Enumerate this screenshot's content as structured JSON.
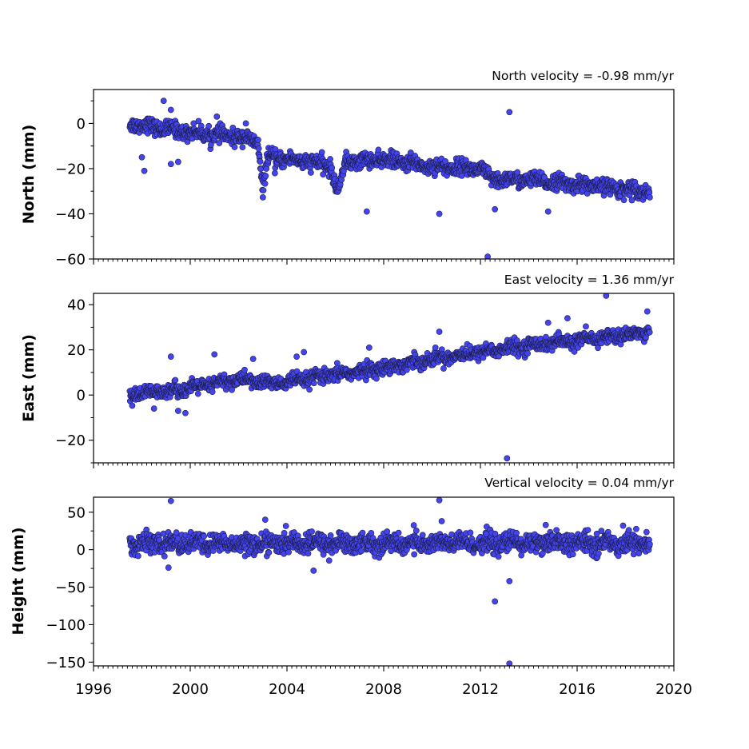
{
  "chart_data": [
    {
      "type": "scatter",
      "title": "North velocity = -0.98 mm/yr",
      "xlabel": "",
      "ylabel": "North (mm)",
      "xlim": [
        1996,
        2020
      ],
      "ylim": [
        -60,
        15
      ],
      "yticks": [
        {
          "value": 0,
          "label": "0"
        },
        {
          "value": -20,
          "label": "−20"
        },
        {
          "value": -40,
          "label": "−40"
        },
        {
          "value": -60,
          "label": "−60"
        }
      ],
      "trend": [
        {
          "x": 1997.5,
          "y": 0
        },
        {
          "x": 2000.0,
          "y": -4
        },
        {
          "x": 2002.0,
          "y": -6
        },
        {
          "x": 2002.8,
          "y": -8
        },
        {
          "x": 2003.0,
          "y": -30
        },
        {
          "x": 2003.2,
          "y": -15
        },
        {
          "x": 2005.0,
          "y": -17
        },
        {
          "x": 2005.8,
          "y": -19
        },
        {
          "x": 2006.1,
          "y": -31
        },
        {
          "x": 2006.4,
          "y": -17
        },
        {
          "x": 2008.0,
          "y": -16
        },
        {
          "x": 2010.0,
          "y": -19
        },
        {
          "x": 2012.0,
          "y": -20
        },
        {
          "x": 2012.5,
          "y": -25
        },
        {
          "x": 2014.0,
          "y": -25
        },
        {
          "x": 2016.0,
          "y": -27
        },
        {
          "x": 2019.0,
          "y": -30
        }
      ],
      "noise": 2.2,
      "outliers": [
        {
          "x": 1998.9,
          "y": 10
        },
        {
          "x": 1999.2,
          "y": 6
        },
        {
          "x": 1999.2,
          "y": -18
        },
        {
          "x": 1999.5,
          "y": -17
        },
        {
          "x": 1998.0,
          "y": -15
        },
        {
          "x": 1998.1,
          "y": -21
        },
        {
          "x": 2001.1,
          "y": 3
        },
        {
          "x": 2002.3,
          "y": 0
        },
        {
          "x": 2007.3,
          "y": -39
        },
        {
          "x": 2010.3,
          "y": -40
        },
        {
          "x": 2012.3,
          "y": -59
        },
        {
          "x": 2012.6,
          "y": -38
        },
        {
          "x": 2013.2,
          "y": 5
        },
        {
          "x": 2014.8,
          "y": -39
        },
        {
          "x": 2003.5,
          "y": -22
        }
      ]
    },
    {
      "type": "scatter",
      "title": "East velocity = 1.36 mm/yr",
      "xlabel": "",
      "ylabel": "East (mm)",
      "xlim": [
        1996,
        2020
      ],
      "ylim": [
        -30,
        45
      ],
      "yticks": [
        {
          "value": 40,
          "label": "40"
        },
        {
          "value": 20,
          "label": "20"
        },
        {
          "value": 0,
          "label": "0"
        },
        {
          "value": -20,
          "label": "−20"
        }
      ],
      "trend": [
        {
          "x": 1997.5,
          "y": 0
        },
        {
          "x": 2000.0,
          "y": 3
        },
        {
          "x": 2002.0,
          "y": 7
        },
        {
          "x": 2003.5,
          "y": 5
        },
        {
          "x": 2006.0,
          "y": 9
        },
        {
          "x": 2008.0,
          "y": 12
        },
        {
          "x": 2010.0,
          "y": 16
        },
        {
          "x": 2012.0,
          "y": 19
        },
        {
          "x": 2014.0,
          "y": 22
        },
        {
          "x": 2016.0,
          "y": 24
        },
        {
          "x": 2019.0,
          "y": 28
        }
      ],
      "noise": 2.0,
      "outliers": [
        {
          "x": 1999.2,
          "y": 17
        },
        {
          "x": 1999.5,
          "y": -7
        },
        {
          "x": 1999.8,
          "y": -8
        },
        {
          "x": 2001.0,
          "y": 18
        },
        {
          "x": 2002.6,
          "y": 16
        },
        {
          "x": 2004.4,
          "y": 17
        },
        {
          "x": 2004.7,
          "y": 19
        },
        {
          "x": 2007.4,
          "y": 21
        },
        {
          "x": 2010.3,
          "y": 28
        },
        {
          "x": 2013.1,
          "y": -28
        },
        {
          "x": 2015.6,
          "y": 34
        },
        {
          "x": 2017.2,
          "y": 44
        },
        {
          "x": 2018.9,
          "y": 37
        },
        {
          "x": 1998.5,
          "y": -6
        },
        {
          "x": 2014.8,
          "y": 32
        }
      ]
    },
    {
      "type": "scatter",
      "title": "Vertical velocity = 0.04 mm/yr",
      "xlabel": "",
      "ylabel": "Height (mm)",
      "xlim": [
        1996,
        2020
      ],
      "ylim": [
        -155,
        70
      ],
      "yticks": [
        {
          "value": 50,
          "label": "50"
        },
        {
          "value": 0,
          "label": "0"
        },
        {
          "value": -50,
          "label": "−50"
        },
        {
          "value": -100,
          "label": "−100"
        },
        {
          "value": -150,
          "label": "−150"
        }
      ],
      "trend": [
        {
          "x": 1997.5,
          "y": 8
        },
        {
          "x": 2019.0,
          "y": 9
        }
      ],
      "noise": 8.5,
      "outliers": [
        {
          "x": 1999.2,
          "y": 65
        },
        {
          "x": 1999.1,
          "y": -24
        },
        {
          "x": 2003.1,
          "y": 40
        },
        {
          "x": 2005.1,
          "y": -28
        },
        {
          "x": 2010.3,
          "y": 66
        },
        {
          "x": 2010.4,
          "y": 38
        },
        {
          "x": 2012.6,
          "y": -69
        },
        {
          "x": 2013.2,
          "y": -42
        },
        {
          "x": 2013.2,
          "y": -152
        },
        {
          "x": 2014.7,
          "y": 33
        },
        {
          "x": 2017.9,
          "y": 32
        }
      ]
    }
  ],
  "x_axis": {
    "ticks": [
      {
        "value": 1996,
        "label": "1996"
      },
      {
        "value": 2000,
        "label": "2000"
      },
      {
        "value": 2004,
        "label": "2004"
      },
      {
        "value": 2008,
        "label": "2008"
      },
      {
        "value": 2012,
        "label": "2012"
      },
      {
        "value": 2016,
        "label": "2016"
      },
      {
        "value": 2020,
        "label": "2020"
      }
    ],
    "minor_step_years": 0.2
  },
  "series_start": 1997.5,
  "series_end": 2019.0,
  "marker_color": "#4444ee",
  "marker_edge": "#1a1a3a"
}
